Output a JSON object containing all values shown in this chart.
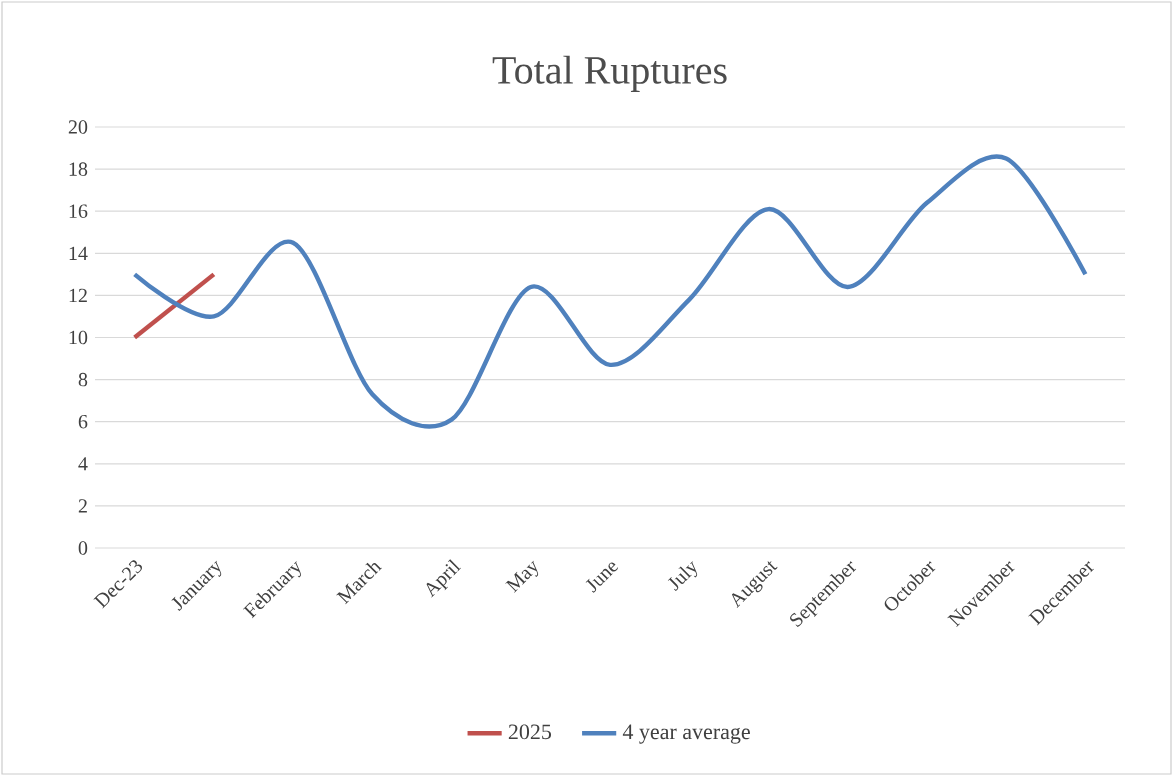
{
  "chart_data": {
    "type": "line",
    "title": "Total Ruptures",
    "categories": [
      "Dec-23",
      "January",
      "February",
      "March",
      "April",
      "May",
      "June",
      "July",
      "August",
      "September",
      "October",
      "November",
      "December"
    ],
    "series": [
      {
        "name": "2025",
        "color": "#c0504d",
        "values": [
          10,
          13,
          null,
          null,
          null,
          null,
          null,
          null,
          null,
          null,
          null,
          null,
          null
        ]
      },
      {
        "name": "4 year average",
        "color": "#4f81bd",
        "values": [
          13,
          11,
          14.5,
          7.3,
          6.1,
          12.4,
          8.7,
          11.8,
          16.1,
          12.4,
          16.4,
          18.5,
          13
        ]
      }
    ],
    "ylim": [
      0,
      20
    ],
    "yticks": [
      0,
      2,
      4,
      6,
      8,
      10,
      12,
      14,
      16,
      18,
      20
    ],
    "grid": "y",
    "legend": "bottom",
    "marker": "none",
    "line_style": "solid"
  }
}
